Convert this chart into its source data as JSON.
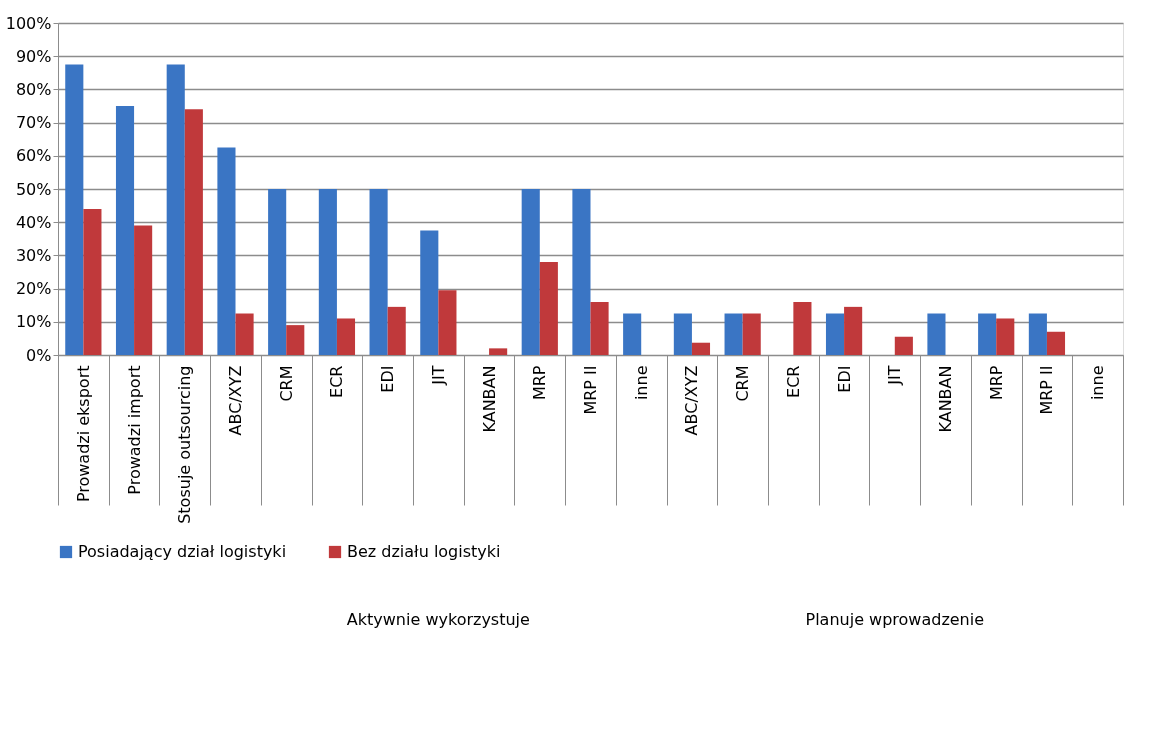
{
  "chart_data": {
    "type": "bar",
    "categories": [
      "Prowadzi eksport",
      "Prowadzi import",
      "Stosuje outsourcing",
      "ABC/XYZ",
      "CRM",
      "ECR",
      "EDI",
      "JIT",
      "KANBAN",
      "MRP",
      "MRP II",
      "inne",
      "ABC/XYZ",
      "CRM",
      "ECR",
      "EDI",
      "JIT",
      "KANBAN",
      "MRP",
      "MRP II",
      "inne"
    ],
    "series": [
      {
        "name": "Posiadający dział logistyki",
        "color": "#3a75c4",
        "values": [
          87.5,
          75,
          87.5,
          62.5,
          50,
          50,
          50,
          37.5,
          0,
          50,
          50,
          12.5,
          12.5,
          12.5,
          0,
          12.5,
          0,
          12.5,
          12.5,
          12.5,
          0
        ]
      },
      {
        "name": "Bez działu logistyki",
        "color": "#c0393b",
        "values": [
          44,
          39,
          74,
          12.5,
          9,
          11,
          14.5,
          19.5,
          2,
          28,
          16,
          0,
          3.7,
          12.5,
          16,
          14.5,
          5.5,
          0,
          11,
          7,
          0
        ]
      }
    ],
    "annotations": [
      "Aktywnie wykorzystuje",
      "Planuje wprowadzenie"
    ],
    "ylim": [
      0,
      100
    ],
    "yticks": [
      {
        "value": 0,
        "label": "0%"
      },
      {
        "value": 10,
        "label": "10%"
      },
      {
        "value": 20,
        "label": "20%"
      },
      {
        "value": 30,
        "label": "30%"
      },
      {
        "value": 40,
        "label": "40%"
      },
      {
        "value": 50,
        "label": "50%"
      },
      {
        "value": 60,
        "label": "60%"
      },
      {
        "value": 70,
        "label": "70%"
      },
      {
        "value": 80,
        "label": "80%"
      },
      {
        "value": 90,
        "label": "90%"
      },
      {
        "value": 100,
        "label": "100%"
      }
    ],
    "grid": "y",
    "legend": "bottom"
  }
}
